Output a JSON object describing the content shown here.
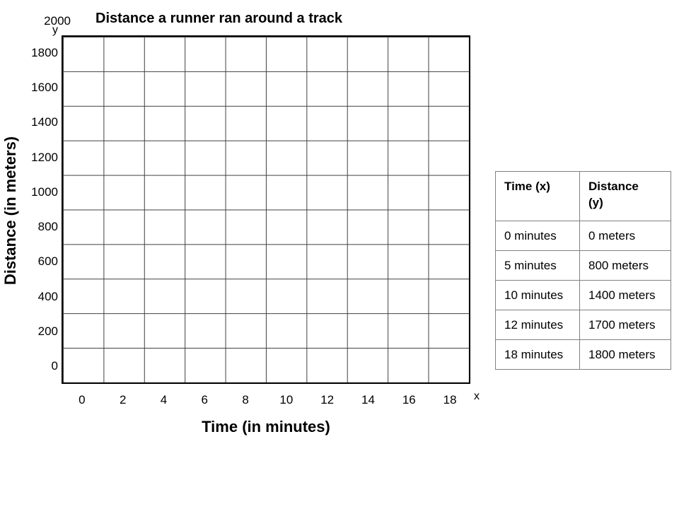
{
  "chart": {
    "title": "Distance a runner ran around a track",
    "x_title": "Time (in minutes)",
    "y_title": "Distance (in meters)",
    "x_axis_letter": "x",
    "y_axis_letter": "y",
    "y_top_label": "2000"
  },
  "chart_data": {
    "type": "scatter",
    "title": "Distance a runner ran around a track",
    "xlabel": "Time (in minutes)",
    "ylabel": "Distance (in meters)",
    "x_ticks": [
      0,
      2,
      4,
      6,
      8,
      10,
      12,
      14,
      16,
      18
    ],
    "y_ticks": [
      0,
      200,
      400,
      600,
      800,
      1000,
      1200,
      1400,
      1600,
      1800,
      2000
    ],
    "xlim": [
      0,
      20
    ],
    "ylim": [
      0,
      2000
    ],
    "grid": true,
    "grid_columns": 10,
    "grid_rows": 10,
    "points_plotted_on_grid": false,
    "points": [
      {
        "x": 0,
        "y": 0
      },
      {
        "x": 5,
        "y": 800
      },
      {
        "x": 10,
        "y": 1400
      },
      {
        "x": 12,
        "y": 1700
      },
      {
        "x": 18,
        "y": 1800
      }
    ]
  },
  "table": {
    "headers": [
      "Time (x)",
      "Distance (y)"
    ],
    "rows": [
      [
        "0 minutes",
        "0 meters"
      ],
      [
        "5 minutes",
        "800 meters"
      ],
      [
        "10 minutes",
        "1400 meters"
      ],
      [
        "12 minutes",
        "1700 meters"
      ],
      [
        "18 minutes",
        "1800 meters"
      ]
    ]
  },
  "colors": {
    "background": "#ffffff",
    "text": "#000000",
    "grid_border": "#000000",
    "grid_lines": "#404040",
    "table_border": "#808080"
  }
}
